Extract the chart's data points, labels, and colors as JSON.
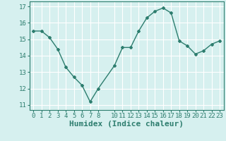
{
  "x": [
    0,
    1,
    2,
    3,
    4,
    5,
    6,
    7,
    8,
    10,
    11,
    12,
    13,
    14,
    15,
    16,
    17,
    18,
    19,
    20,
    21,
    22,
    23
  ],
  "y": [
    15.5,
    15.5,
    15.1,
    14.4,
    13.3,
    12.7,
    12.2,
    11.2,
    12.0,
    13.4,
    14.5,
    14.5,
    15.5,
    16.3,
    16.7,
    16.9,
    16.6,
    14.9,
    14.6,
    14.1,
    14.3,
    14.7,
    14.9
  ],
  "xlabel": "Humidex (Indice chaleur)",
  "xticks": [
    0,
    1,
    2,
    3,
    4,
    5,
    6,
    7,
    8,
    10,
    11,
    12,
    13,
    14,
    15,
    16,
    17,
    18,
    19,
    20,
    21,
    22,
    23
  ],
  "yticks": [
    11,
    12,
    13,
    14,
    15,
    16,
    17
  ],
  "ylim": [
    10.7,
    17.3
  ],
  "xlim": [
    -0.5,
    23.5
  ],
  "line_color": "#2d7d6e",
  "marker": "D",
  "marker_size": 2.0,
  "bg_color": "#d6f0ef",
  "grid_color": "#ffffff",
  "tick_label_fontsize": 6.5,
  "xlabel_fontsize": 8,
  "line_width": 1.0
}
